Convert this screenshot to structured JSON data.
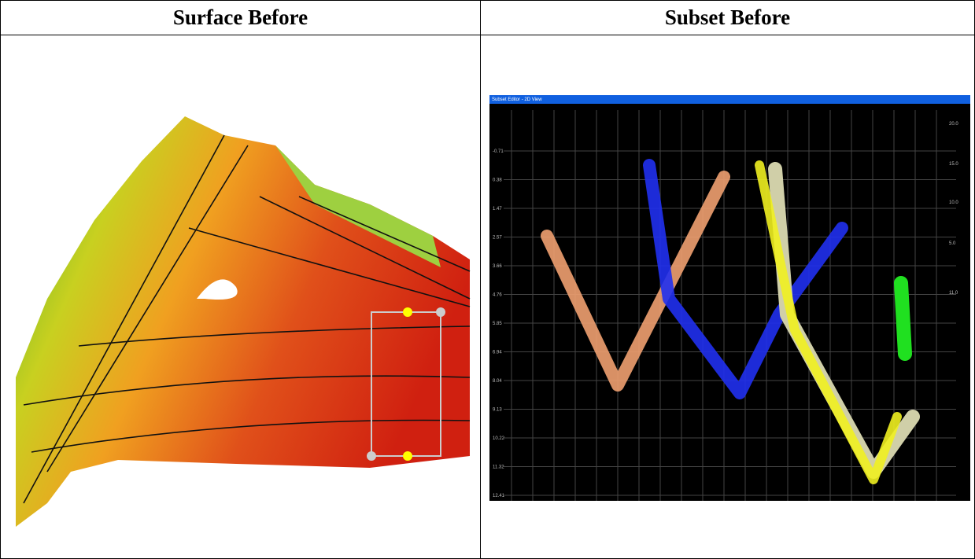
{
  "table": {
    "headers": [
      "Surface Before",
      "Subset Before"
    ]
  },
  "subset_view": {
    "title": "Subset Editor - 2D View",
    "left_axis_labels": [
      "-0.71",
      "0.38",
      "1.47",
      "2.57",
      "3.66",
      "4.76",
      "5.85",
      "6.94",
      "8.04",
      "9.13",
      "10.22",
      "11.32",
      "12.41"
    ],
    "right_axis_labels": [
      "20.0",
      "15.0",
      "10.0",
      "5.0",
      "11.0"
    ]
  }
}
